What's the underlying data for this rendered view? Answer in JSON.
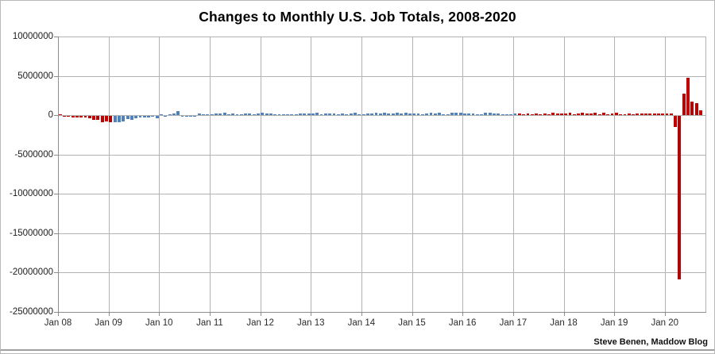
{
  "credit": "Steve Benen, Maddow Blog",
  "chart_data": {
    "type": "bar",
    "title": "Changes to Monthly U.S. Job Totals, 2008-2020",
    "xlabel": "",
    "ylabel": "",
    "ylim": [
      -25000000,
      10000000
    ],
    "y_tick_interval": 5000000,
    "y_tick_labels": [
      "10000000",
      "5000000",
      "0",
      "-5000000",
      "-10000000",
      "-15000000",
      "-20000000",
      "-25000000"
    ],
    "x_tick_labels": [
      "Jan 08",
      "Jan 09",
      "Jan 10",
      "Jan 11",
      "Jan 12",
      "Jan 13",
      "Jan 14",
      "Jan 15",
      "Jan 16",
      "Jan 17",
      "Jan 18",
      "Jan 19",
      "Jan 20"
    ],
    "grid": true,
    "legend": "none",
    "start_month": "Jan 2008",
    "end_month": "Sep 2020",
    "values_unit": "thousands of jobs (monthly change in U.S. payrolls)",
    "monthly_changes_thousands": [
      {
        "year": 2008,
        "values": [
          15,
          -86,
          -80,
          -214,
          -182,
          -172,
          -210,
          -259,
          -452,
          -474,
          -765,
          -697
        ]
      },
      {
        "year": 2009,
        "values": [
          -783,
          -743,
          -800,
          -695,
          -354,
          -467,
          -327,
          -216,
          -227,
          -198,
          -6,
          -283
        ]
      },
      {
        "year": 2010,
        "values": [
          18,
          -50,
          156,
          251,
          516,
          -122,
          -61,
          -42,
          -57,
          241,
          137,
          71
        ]
      },
      {
        "year": 2011,
        "values": [
          70,
          168,
          212,
          322,
          102,
          217,
          106,
          122,
          221,
          183,
          164,
          196
        ]
      },
      {
        "year": 2012,
        "values": [
          360,
          226,
          243,
          96,
          110,
          88,
          160,
          150,
          161,
          225,
          203,
          214
        ]
      },
      {
        "year": 2013,
        "values": [
          197,
          280,
          141,
          203,
          199,
          177,
          149,
          202,
          164,
          237,
          274,
          84
        ]
      },
      {
        "year": 2014,
        "values": [
          144,
          222,
          203,
          304,
          229,
          267,
          243,
          203,
          271,
          243,
          321,
          256
        ]
      },
      {
        "year": 2015,
        "values": [
          201,
          266,
          84,
          251,
          273,
          228,
          277,
          150,
          149,
          295,
          280,
          271
        ]
      },
      {
        "year": 2016,
        "values": [
          168,
          233,
          225,
          153,
          43,
          297,
          291,
          176,
          249,
          124,
          164,
          155
        ]
      },
      {
        "year": 2017,
        "values": [
          216,
          232,
          50,
          207,
          145,
          210,
          138,
          208,
          14,
          271,
          216,
          175
        ]
      },
      {
        "year": 2018,
        "values": [
          176,
          324,
          155,
          175,
          268,
          208,
          178,
          282,
          108,
          277,
          119,
          182
        ]
      },
      {
        "year": 2019,
        "values": [
          312,
          56,
          153,
          216,
          62,
          178,
          166,
          219,
          208,
          185,
          261,
          184
        ]
      },
      {
        "year": 2020,
        "values": [
          214,
          251,
          -1373,
          -20787,
          2725,
          4781,
          1761,
          1489,
          661
        ]
      }
    ],
    "bar_coloring": {
      "red_period": "Jan 2008 - Jan 2009 and Feb 2017 - Sep 2020",
      "blue_period": "Feb 2009 - Jan 2017",
      "first_blue_month_index": 13,
      "first_red_resume_month_index": 109
    },
    "colors": {
      "bar_red": "#c00000",
      "bar_blue": "#4f81bd",
      "gridline": "#b3b3b3",
      "axis": "#8c8c8c"
    }
  }
}
